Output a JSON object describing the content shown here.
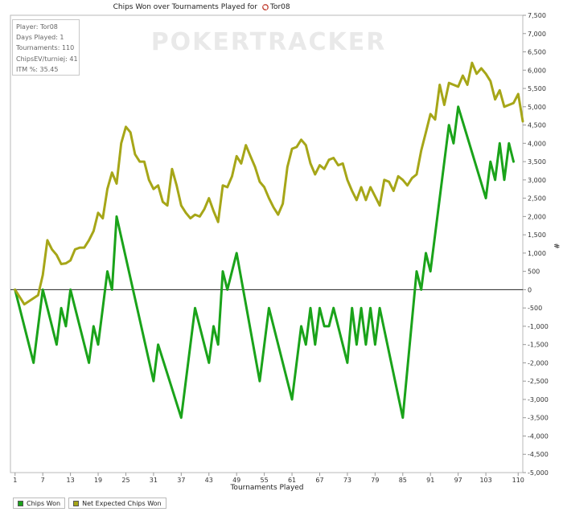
{
  "chart_data": {
    "type": "line",
    "title": "Chips Won over Tournaments Played for",
    "player_name": "Tor08",
    "watermark": "POKERTRACKER",
    "xlabel": "Tournaments Played",
    "ylabel": "#",
    "xlim": [
      0,
      111
    ],
    "ylim": [
      -5000,
      7500
    ],
    "x_ticks": [
      "1",
      "7",
      "13",
      "19",
      "25",
      "31",
      "37",
      "43",
      "49",
      "55",
      "61",
      "67",
      "73",
      "79",
      "85",
      "91",
      "97",
      "103",
      "110"
    ],
    "y_ticks": [
      "7,500",
      "7,000",
      "6,500",
      "6,000",
      "5,500",
      "5,000",
      "4,500",
      "4,000",
      "3,500",
      "3,000",
      "2,500",
      "2,000",
      "1,500",
      "1,000",
      "500",
      "0",
      "-500",
      "-1,000",
      "-1,500",
      "-2,000",
      "-2,500",
      "-3,000",
      "-3,500",
      "-4,000",
      "-4,500",
      "-5,000"
    ],
    "legend_position": "bottom-left",
    "series": [
      {
        "name": "Chips Won",
        "color": "#1aa31a",
        "points": [
          [
            1,
            0
          ],
          [
            5,
            -2000
          ],
          [
            7,
            0
          ],
          [
            10,
            -1500
          ],
          [
            11,
            -500
          ],
          [
            12,
            -1000
          ],
          [
            13,
            0
          ],
          [
            17,
            -2000
          ],
          [
            18,
            -1000
          ],
          [
            19,
            -1500
          ],
          [
            20,
            -500
          ],
          [
            21,
            500
          ],
          [
            22,
            0
          ],
          [
            23,
            2000
          ],
          [
            31,
            -2500
          ],
          [
            32,
            -1500
          ],
          [
            37,
            -3500
          ],
          [
            40,
            -500
          ],
          [
            43,
            -2000
          ],
          [
            44,
            -1000
          ],
          [
            45,
            -1500
          ],
          [
            46,
            500
          ],
          [
            47,
            0
          ],
          [
            49,
            1000
          ],
          [
            54,
            -2500
          ],
          [
            56,
            -500
          ],
          [
            61,
            -3000
          ],
          [
            63,
            -1000
          ],
          [
            64,
            -1500
          ],
          [
            65,
            -500
          ],
          [
            66,
            -1500
          ],
          [
            67,
            -500
          ],
          [
            68,
            -1000
          ],
          [
            69,
            -1000
          ],
          [
            70,
            -500
          ],
          [
            73,
            -2000
          ],
          [
            74,
            -500
          ],
          [
            75,
            -1500
          ],
          [
            76,
            -500
          ],
          [
            77,
            -1500
          ],
          [
            78,
            -500
          ],
          [
            79,
            -1500
          ],
          [
            80,
            -500
          ],
          [
            85,
            -3500
          ],
          [
            88,
            500
          ],
          [
            89,
            0
          ],
          [
            90,
            1000
          ],
          [
            91,
            500
          ],
          [
            95,
            4500
          ],
          [
            96,
            4000
          ],
          [
            97,
            5000
          ],
          [
            103,
            2500
          ],
          [
            104,
            3500
          ],
          [
            105,
            3000
          ],
          [
            106,
            4000
          ],
          [
            107,
            3000
          ],
          [
            108,
            4000
          ],
          [
            109,
            3500
          ]
        ]
      },
      {
        "name": "Net Expected Chips Won",
        "color": "#a6a618",
        "points": [
          [
            1,
            0
          ],
          [
            3,
            -400
          ],
          [
            6,
            -150
          ],
          [
            7,
            400
          ],
          [
            8,
            1350
          ],
          [
            9,
            1100
          ],
          [
            10,
            950
          ],
          [
            11,
            700
          ],
          [
            12,
            720
          ],
          [
            13,
            800
          ],
          [
            14,
            1100
          ],
          [
            15,
            1150
          ],
          [
            16,
            1150
          ],
          [
            17,
            1350
          ],
          [
            18,
            1600
          ],
          [
            19,
            2100
          ],
          [
            20,
            1950
          ],
          [
            21,
            2750
          ],
          [
            22,
            3200
          ],
          [
            23,
            2900
          ],
          [
            24,
            4000
          ],
          [
            25,
            4450
          ],
          [
            26,
            4300
          ],
          [
            27,
            3700
          ],
          [
            28,
            3500
          ],
          [
            29,
            3500
          ],
          [
            30,
            3000
          ],
          [
            31,
            2750
          ],
          [
            32,
            2850
          ],
          [
            33,
            2400
          ],
          [
            34,
            2300
          ],
          [
            35,
            3300
          ],
          [
            36,
            2850
          ],
          [
            37,
            2300
          ],
          [
            38,
            2100
          ],
          [
            39,
            1950
          ],
          [
            40,
            2050
          ],
          [
            41,
            2000
          ],
          [
            42,
            2200
          ],
          [
            43,
            2500
          ],
          [
            44,
            2150
          ],
          [
            45,
            1850
          ],
          [
            46,
            2850
          ],
          [
            47,
            2800
          ],
          [
            48,
            3100
          ],
          [
            49,
            3650
          ],
          [
            50,
            3450
          ],
          [
            51,
            3950
          ],
          [
            52,
            3650
          ],
          [
            53,
            3350
          ],
          [
            54,
            2950
          ],
          [
            55,
            2800
          ],
          [
            56,
            2500
          ],
          [
            57,
            2250
          ],
          [
            58,
            2050
          ],
          [
            59,
            2350
          ],
          [
            60,
            3350
          ],
          [
            61,
            3850
          ],
          [
            62,
            3900
          ],
          [
            63,
            4100
          ],
          [
            64,
            3950
          ],
          [
            65,
            3450
          ],
          [
            66,
            3150
          ],
          [
            67,
            3400
          ],
          [
            68,
            3300
          ],
          [
            69,
            3550
          ],
          [
            70,
            3600
          ],
          [
            71,
            3400
          ],
          [
            72,
            3450
          ],
          [
            73,
            3000
          ],
          [
            74,
            2700
          ],
          [
            75,
            2450
          ],
          [
            76,
            2800
          ],
          [
            77,
            2450
          ],
          [
            78,
            2800
          ],
          [
            79,
            2550
          ],
          [
            80,
            2300
          ],
          [
            81,
            3000
          ],
          [
            82,
            2950
          ],
          [
            83,
            2700
          ],
          [
            84,
            3100
          ],
          [
            85,
            3000
          ],
          [
            86,
            2850
          ],
          [
            87,
            3050
          ],
          [
            88,
            3150
          ],
          [
            89,
            3800
          ],
          [
            90,
            4300
          ],
          [
            91,
            4800
          ],
          [
            92,
            4650
          ],
          [
            93,
            5600
          ],
          [
            94,
            5050
          ],
          [
            95,
            5650
          ],
          [
            96,
            5600
          ],
          [
            97,
            5550
          ],
          [
            98,
            5850
          ],
          [
            99,
            5600
          ],
          [
            100,
            6200
          ],
          [
            101,
            5900
          ],
          [
            102,
            6050
          ],
          [
            103,
            5900
          ],
          [
            104,
            5700
          ],
          [
            105,
            5200
          ],
          [
            106,
            5450
          ],
          [
            107,
            5000
          ],
          [
            108,
            5050
          ],
          [
            109,
            5100
          ],
          [
            110,
            5350
          ],
          [
            111,
            4600
          ]
        ]
      }
    ]
  },
  "stats": {
    "player": "Player: Tor08",
    "days_played": "Days Played: 1",
    "tournaments": "Tournaments: 110",
    "chips_ev": "ChipsEV/turniej: 41",
    "itm": "ITM %: 35.45"
  },
  "legend": {
    "items": [
      {
        "label": "Chips Won",
        "color": "#1aa31a"
      },
      {
        "label": "Net Expected Chips Won",
        "color": "#a6a618"
      }
    ]
  }
}
